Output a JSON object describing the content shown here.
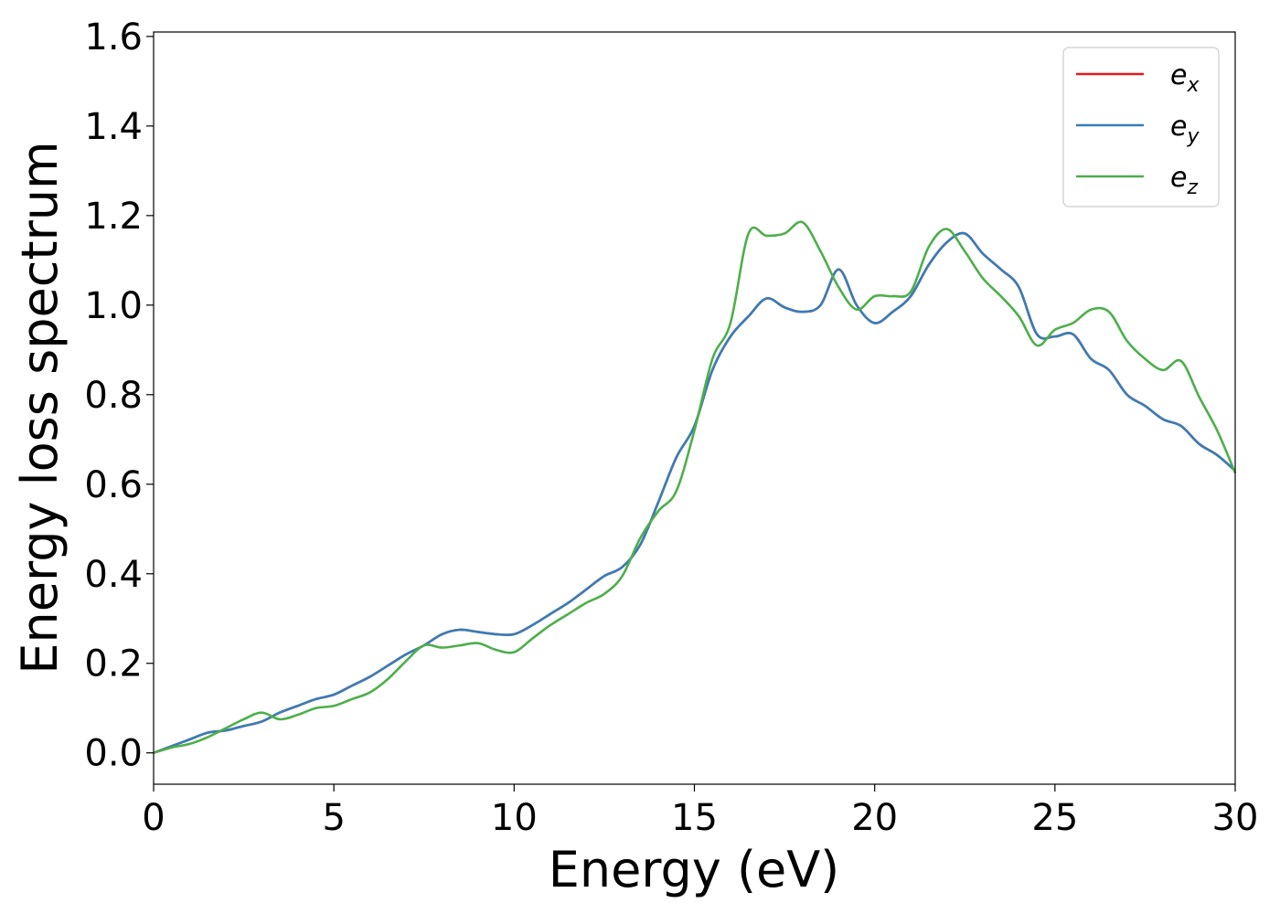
{
  "chart_data": {
    "type": "line",
    "title": "",
    "xlabel": "Energy (eV)",
    "ylabel": "Energy loss spectrum",
    "xlim": [
      0,
      30
    ],
    "ylim": [
      -0.07,
      1.61
    ],
    "xticks": [
      0,
      5,
      10,
      15,
      20,
      25,
      30
    ],
    "xtick_labels": [
      "0",
      "5",
      "10",
      "15",
      "20",
      "25",
      "30"
    ],
    "yticks": [
      0.0,
      0.2,
      0.4,
      0.6,
      0.8,
      1.0,
      1.2,
      1.4,
      1.6
    ],
    "ytick_labels": [
      "0.0",
      "0.2",
      "0.4",
      "0.6",
      "0.8",
      "1.0",
      "1.2",
      "1.4",
      "1.6"
    ],
    "grid": false,
    "legend_position": "top-right",
    "series": [
      {
        "name": "e_x",
        "label_base": "e",
        "label_sub": "x",
        "color": "#e41a1c",
        "x": [
          0,
          0.5,
          1,
          1.5,
          2,
          2.5,
          3,
          3.5,
          4,
          4.5,
          5,
          5.5,
          6,
          6.5,
          7,
          7.5,
          8,
          8.5,
          9,
          9.5,
          10,
          10.5,
          11,
          11.5,
          12,
          12.5,
          13,
          13.5,
          14,
          14.5,
          15,
          15.5,
          16,
          16.5,
          17,
          17.5,
          18,
          18.5,
          19,
          19.5,
          20,
          20.5,
          21,
          21.5,
          22,
          22.5,
          23,
          23.5,
          24,
          24.5,
          25,
          25.5,
          26,
          26.5,
          27,
          27.5,
          28,
          28.5,
          29,
          29.5,
          30
        ],
        "y": [
          0,
          0.015,
          0.03,
          0.045,
          0.05,
          0.06,
          0.07,
          0.09,
          0.105,
          0.12,
          0.13,
          0.15,
          0.17,
          0.195,
          0.22,
          0.24,
          0.265,
          0.275,
          0.27,
          0.265,
          0.265,
          0.285,
          0.31,
          0.335,
          0.365,
          0.395,
          0.415,
          0.465,
          0.56,
          0.66,
          0.73,
          0.855,
          0.93,
          0.975,
          1.015,
          0.995,
          0.985,
          1.0,
          1.08,
          1.0,
          0.96,
          0.985,
          1.02,
          1.09,
          1.14,
          1.16,
          1.115,
          1.08,
          1.04,
          0.935,
          0.93,
          0.935,
          0.88,
          0.855,
          0.8,
          0.775,
          0.745,
          0.73,
          0.69,
          0.665,
          0.63
        ]
      },
      {
        "name": "e_y",
        "label_base": "e",
        "label_sub": "y",
        "color": "#377eb8",
        "x": [
          0,
          0.5,
          1,
          1.5,
          2,
          2.5,
          3,
          3.5,
          4,
          4.5,
          5,
          5.5,
          6,
          6.5,
          7,
          7.5,
          8,
          8.5,
          9,
          9.5,
          10,
          10.5,
          11,
          11.5,
          12,
          12.5,
          13,
          13.5,
          14,
          14.5,
          15,
          15.5,
          16,
          16.5,
          17,
          17.5,
          18,
          18.5,
          19,
          19.5,
          20,
          20.5,
          21,
          21.5,
          22,
          22.5,
          23,
          23.5,
          24,
          24.5,
          25,
          25.5,
          26,
          26.5,
          27,
          27.5,
          28,
          28.5,
          29,
          29.5,
          30
        ],
        "y": [
          0,
          0.015,
          0.03,
          0.045,
          0.05,
          0.06,
          0.07,
          0.09,
          0.105,
          0.12,
          0.13,
          0.15,
          0.17,
          0.195,
          0.22,
          0.24,
          0.265,
          0.275,
          0.27,
          0.265,
          0.265,
          0.285,
          0.31,
          0.335,
          0.365,
          0.395,
          0.415,
          0.465,
          0.56,
          0.66,
          0.73,
          0.855,
          0.93,
          0.975,
          1.015,
          0.995,
          0.985,
          1.0,
          1.08,
          1.0,
          0.96,
          0.985,
          1.02,
          1.09,
          1.14,
          1.16,
          1.115,
          1.08,
          1.04,
          0.935,
          0.93,
          0.935,
          0.88,
          0.855,
          0.8,
          0.775,
          0.745,
          0.73,
          0.69,
          0.665,
          0.63
        ]
      },
      {
        "name": "e_z",
        "label_base": "e",
        "label_sub": "z",
        "color": "#4daf4a",
        "x": [
          0,
          0.5,
          1,
          1.5,
          2,
          2.5,
          3,
          3.5,
          4,
          4.5,
          5,
          5.5,
          6,
          6.5,
          7,
          7.5,
          8,
          8.5,
          9,
          9.5,
          10,
          10.5,
          11,
          11.5,
          12,
          12.5,
          13,
          13.5,
          14,
          14.5,
          15,
          15.5,
          16,
          16.5,
          17,
          17.5,
          18,
          18.5,
          19,
          19.5,
          20,
          20.5,
          21,
          21.5,
          22,
          22.5,
          23,
          23.5,
          24,
          24.5,
          25,
          25.5,
          26,
          26.5,
          27,
          27.5,
          28,
          28.5,
          29,
          29.5,
          30
        ],
        "y": [
          0,
          0.012,
          0.02,
          0.035,
          0.055,
          0.075,
          0.09,
          0.075,
          0.085,
          0.1,
          0.105,
          0.12,
          0.135,
          0.165,
          0.205,
          0.24,
          0.235,
          0.24,
          0.245,
          0.23,
          0.225,
          0.255,
          0.285,
          0.31,
          0.335,
          0.355,
          0.395,
          0.48,
          0.54,
          0.585,
          0.72,
          0.88,
          0.96,
          1.16,
          1.155,
          1.16,
          1.185,
          1.12,
          1.04,
          0.99,
          1.02,
          1.02,
          1.03,
          1.13,
          1.17,
          1.12,
          1.06,
          1.02,
          0.975,
          0.91,
          0.945,
          0.96,
          0.99,
          0.985,
          0.92,
          0.88,
          0.855,
          0.875,
          0.795,
          0.72,
          0.625
        ]
      }
    ]
  }
}
